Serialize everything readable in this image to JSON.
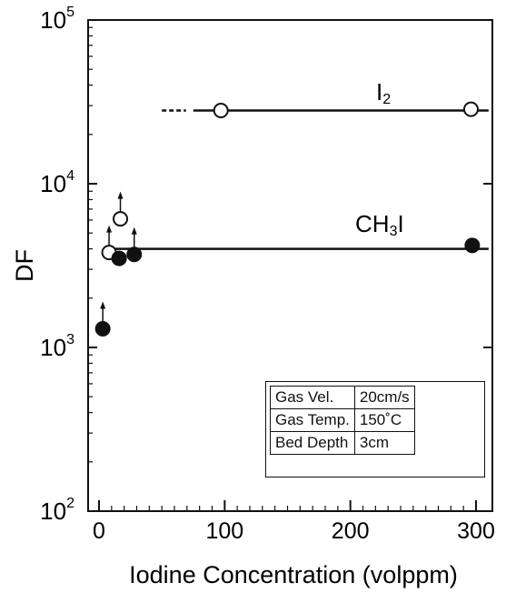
{
  "chart_data": {
    "type": "scatter",
    "x_scale": "linear",
    "y_scale": "log",
    "xlim": [
      0,
      310
    ],
    "ylim": [
      100,
      100000
    ],
    "xlabel": "Iodine Concentration (volppm)",
    "ylabel": "DF",
    "x_ticks": [
      {
        "value": 0,
        "label": "0"
      },
      {
        "value": 100,
        "label": "100"
      },
      {
        "value": 200,
        "label": "200"
      },
      {
        "value": 300,
        "label": "300"
      }
    ],
    "y_ticks": [
      {
        "value": 100,
        "base": "10",
        "exp": "2"
      },
      {
        "value": 1000,
        "base": "10",
        "exp": "3"
      },
      {
        "value": 10000,
        "base": "10",
        "exp": "4"
      },
      {
        "value": 100000,
        "base": "10",
        "exp": "5"
      }
    ],
    "series": [
      {
        "name_main": "I",
        "name_sub": "2",
        "marker": "open-circle",
        "points": [
          {
            "x": 97,
            "y": 28000,
            "lower_bound": false
          },
          {
            "x": 296,
            "y": 28500,
            "lower_bound": false
          },
          {
            "x": 8,
            "y": 3800,
            "lower_bound": true
          },
          {
            "x": 17,
            "y": 6100,
            "lower_bound": true
          }
        ],
        "trend": {
          "dashed": [
            50,
            75
          ],
          "solid": [
            75,
            310
          ],
          "y": 28000
        }
      },
      {
        "name_main": "CH",
        "name_sub": "3",
        "name_tail": "I",
        "marker": "filled-circle",
        "points": [
          {
            "x": 3,
            "y": 1300,
            "lower_bound": true
          },
          {
            "x": 16,
            "y": 3500,
            "lower_bound": false
          },
          {
            "x": 28,
            "y": 3700,
            "lower_bound": true
          },
          {
            "x": 297,
            "y": 4200,
            "lower_bound": false
          }
        ],
        "trend": {
          "solid": [
            8,
            310
          ],
          "y": 4000
        }
      }
    ],
    "conditions": [
      {
        "label": "Gas Vel.",
        "value": "20cm/s"
      },
      {
        "label": "Gas Temp.",
        "value": "150˚C"
      },
      {
        "label": "Bed Depth",
        "value": "3cm"
      }
    ]
  }
}
